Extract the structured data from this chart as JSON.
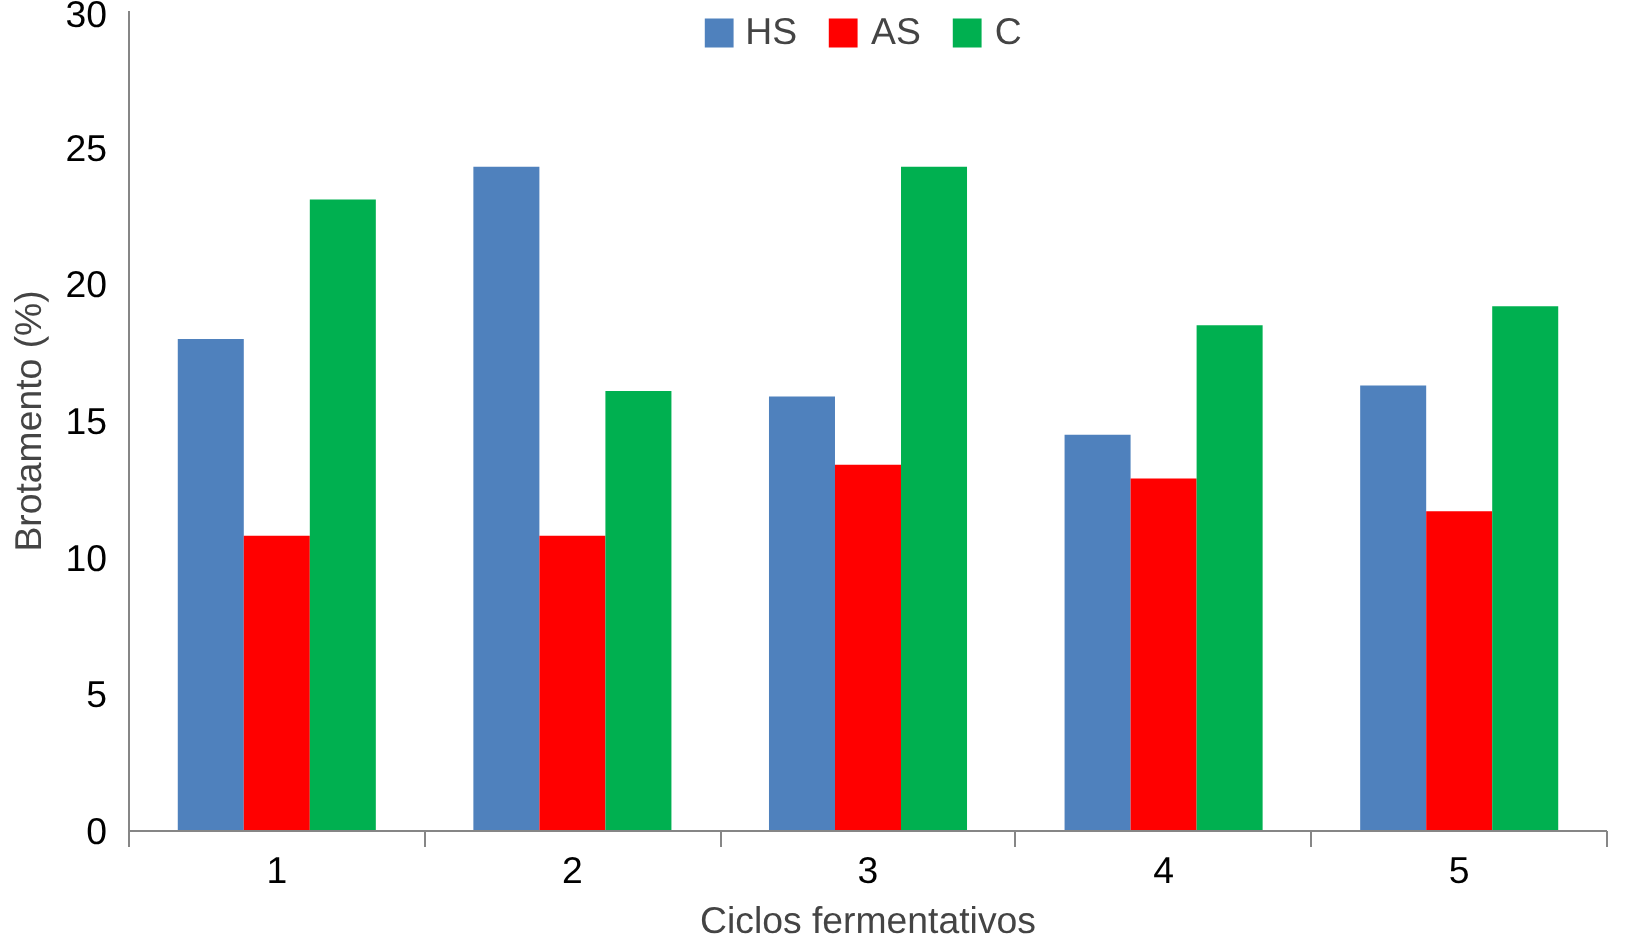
{
  "chart_data": {
    "type": "bar",
    "categories": [
      "1",
      "2",
      "3",
      "4",
      "5"
    ],
    "series": [
      {
        "name": "HS",
        "color": "#4f81bd",
        "values": [
          18.0,
          24.3,
          15.9,
          14.5,
          16.3
        ]
      },
      {
        "name": "AS",
        "color": "#ff0000",
        "values": [
          10.8,
          10.8,
          13.4,
          12.9,
          11.7
        ]
      },
      {
        "name": "C",
        "color": "#00b050",
        "values": [
          23.1,
          16.1,
          24.3,
          18.5,
          19.2
        ]
      }
    ],
    "xlabel": "Ciclos fermentativos",
    "ylabel": "Brotamento (%)",
    "ylim": [
      0,
      30
    ],
    "yticks": [
      0,
      5,
      10,
      15,
      20,
      25,
      30
    ],
    "grid": false,
    "legend": "top"
  }
}
